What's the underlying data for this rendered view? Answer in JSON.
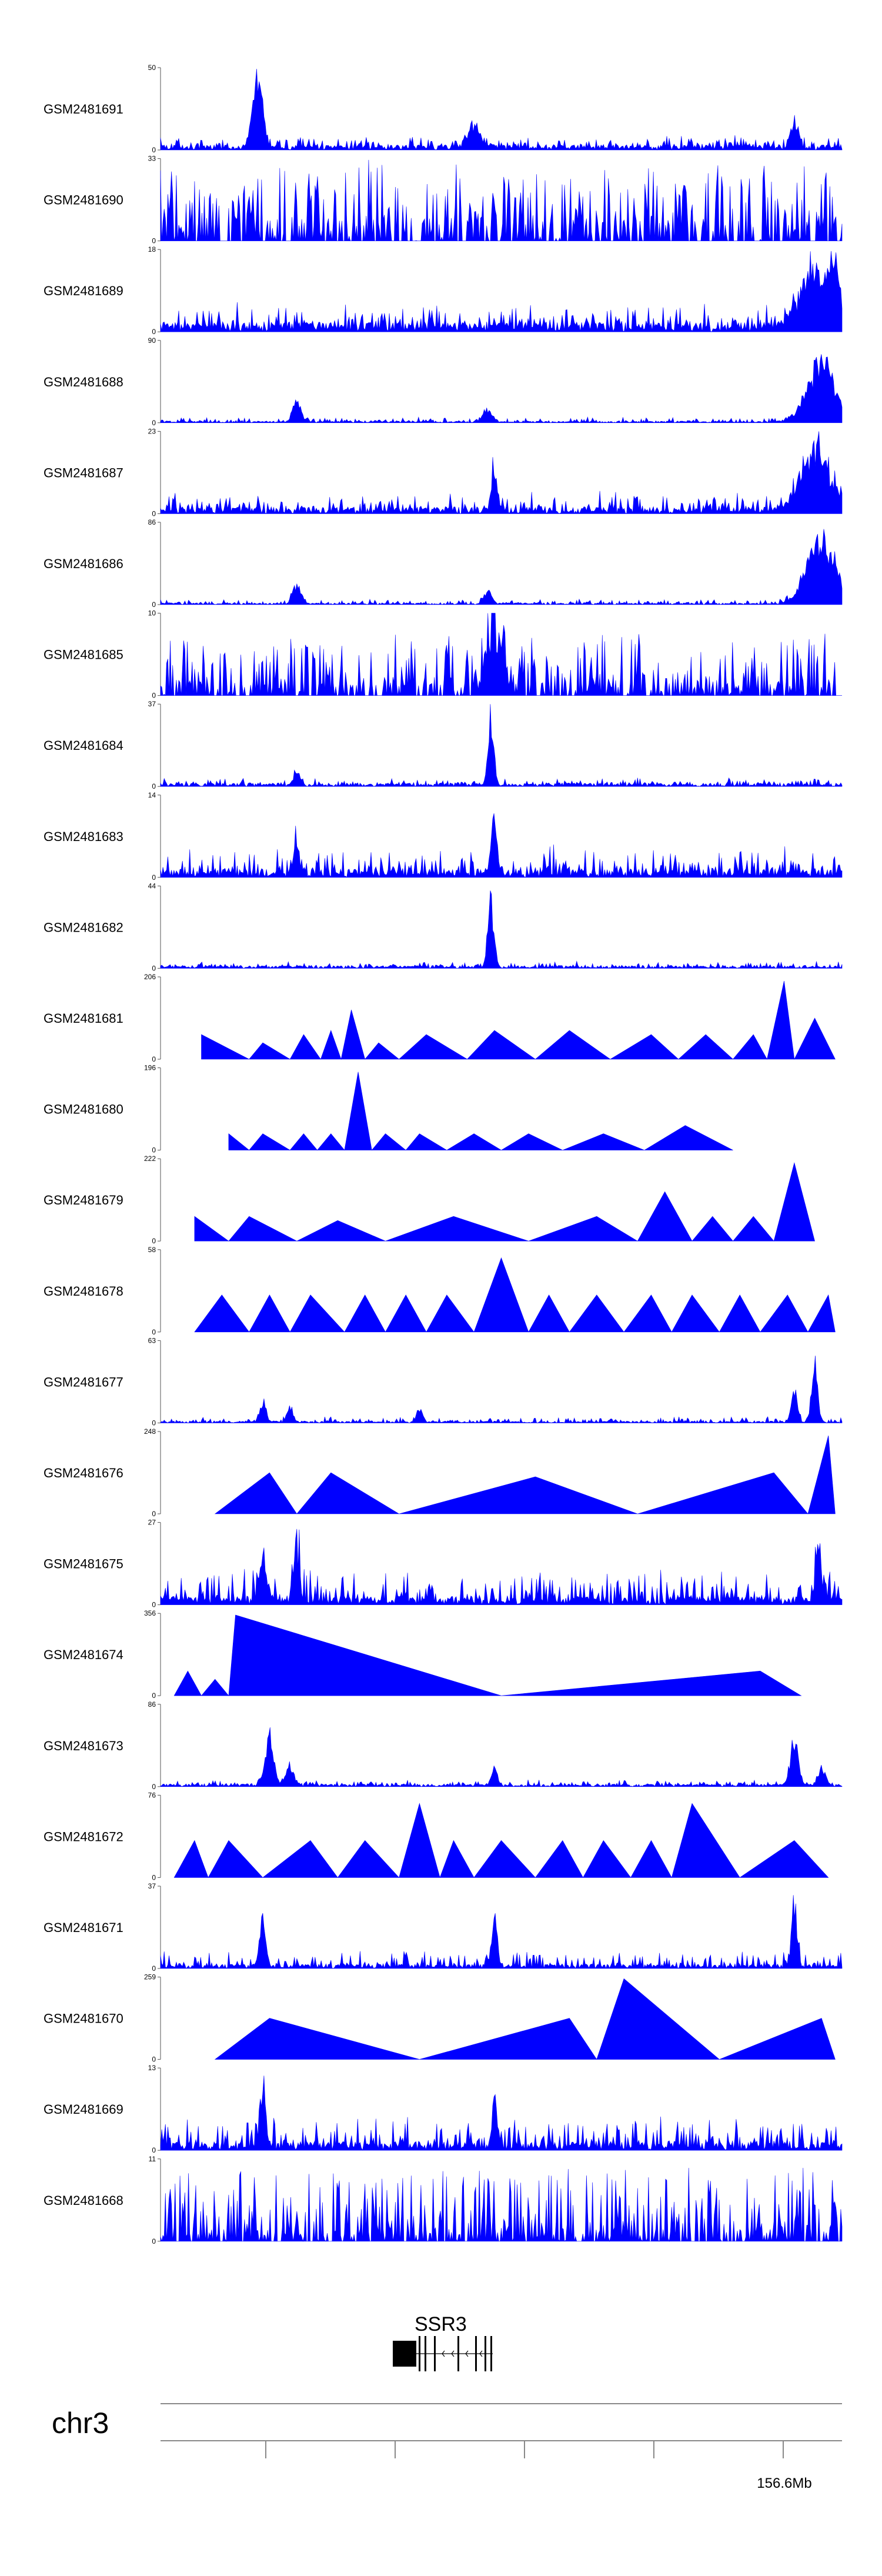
{
  "chart_data": {
    "type": "area",
    "title": "",
    "color": "#0000ff",
    "tracks": [
      {
        "name": "GSM2481691",
        "ymax": 50,
        "style": "noisy",
        "base": 0.06,
        "noise": 0.12,
        "peaks": [
          [
            0.14,
            0.95,
            0.008
          ],
          [
            0.15,
            0.5,
            0.006
          ],
          [
            0.46,
            0.3,
            0.015
          ],
          [
            0.93,
            0.38,
            0.008
          ]
        ]
      },
      {
        "name": "GSM2481690",
        "ymax": 33,
        "style": "spiky",
        "base": 0.25,
        "noise": 0.75,
        "peaks": []
      },
      {
        "name": "GSM2481689",
        "ymax": 18,
        "style": "noisy",
        "base": 0.12,
        "noise": 0.25,
        "peaks": [
          [
            0.96,
            0.85,
            0.03
          ],
          [
            0.99,
            0.75,
            0.01
          ]
        ]
      },
      {
        "name": "GSM2481688",
        "ymax": 90,
        "style": "noisy",
        "base": 0.02,
        "noise": 0.05,
        "peaks": [
          [
            0.2,
            0.32,
            0.008
          ],
          [
            0.48,
            0.2,
            0.008
          ],
          [
            0.97,
            0.85,
            0.03
          ]
        ]
      },
      {
        "name": "GSM2481687",
        "ymax": 23,
        "style": "noisy",
        "base": 0.08,
        "noise": 0.2,
        "peaks": [
          [
            0.49,
            0.55,
            0.006
          ],
          [
            0.96,
            0.85,
            0.03
          ]
        ]
      },
      {
        "name": "GSM2481686",
        "ymax": 86,
        "style": "noisy",
        "base": 0.02,
        "noise": 0.05,
        "peaks": [
          [
            0.2,
            0.3,
            0.008
          ],
          [
            0.48,
            0.17,
            0.008
          ],
          [
            0.97,
            0.95,
            0.03
          ]
        ]
      },
      {
        "name": "GSM2481685",
        "ymax": 10,
        "style": "spiky",
        "base": 0.15,
        "noise": 0.65,
        "peaks": [
          [
            0.49,
            0.95,
            0.015
          ]
        ]
      },
      {
        "name": "GSM2481684",
        "ymax": 37,
        "style": "noisy",
        "base": 0.04,
        "noise": 0.07,
        "peaks": [
          [
            0.2,
            0.2,
            0.006
          ],
          [
            0.485,
            0.98,
            0.006
          ]
        ]
      },
      {
        "name": "GSM2481683",
        "ymax": 14,
        "style": "noisy",
        "base": 0.1,
        "noise": 0.3,
        "peaks": [
          [
            0.49,
            0.88,
            0.006
          ],
          [
            0.2,
            0.45,
            0.006
          ]
        ]
      },
      {
        "name": "GSM2481682",
        "ymax": 44,
        "style": "noisy",
        "base": 0.03,
        "noise": 0.06,
        "peaks": [
          [
            0.485,
            0.98,
            0.006
          ]
        ]
      },
      {
        "name": "GSM2481681",
        "ymax": 206,
        "style": "tri",
        "points": [
          [
            0.06,
            0.3
          ],
          [
            0.13,
            0.0
          ],
          [
            0.15,
            0.2
          ],
          [
            0.19,
            0.0
          ],
          [
            0.21,
            0.3
          ],
          [
            0.235,
            0.0
          ],
          [
            0.25,
            0.35
          ],
          [
            0.265,
            0.0
          ],
          [
            0.28,
            0.6
          ],
          [
            0.3,
            0.0
          ],
          [
            0.32,
            0.2
          ],
          [
            0.35,
            0.0
          ],
          [
            0.39,
            0.3
          ],
          [
            0.45,
            0.0
          ],
          [
            0.49,
            0.35
          ],
          [
            0.55,
            0.0
          ],
          [
            0.6,
            0.35
          ],
          [
            0.66,
            0.0
          ],
          [
            0.72,
            0.3
          ],
          [
            0.76,
            0.0
          ],
          [
            0.8,
            0.3
          ],
          [
            0.84,
            0.0
          ],
          [
            0.87,
            0.3
          ],
          [
            0.89,
            0.0
          ],
          [
            0.915,
            0.95
          ],
          [
            0.93,
            0.0
          ],
          [
            0.96,
            0.5
          ],
          [
            0.99,
            0.0
          ]
        ]
      },
      {
        "name": "GSM2481680",
        "ymax": 196,
        "style": "tri",
        "points": [
          [
            0.1,
            0.2
          ],
          [
            0.13,
            0.0
          ],
          [
            0.15,
            0.2
          ],
          [
            0.19,
            0.0
          ],
          [
            0.21,
            0.2
          ],
          [
            0.23,
            0.0
          ],
          [
            0.25,
            0.2
          ],
          [
            0.27,
            0.0
          ],
          [
            0.29,
            0.95
          ],
          [
            0.31,
            0.0
          ],
          [
            0.33,
            0.2
          ],
          [
            0.36,
            0.0
          ],
          [
            0.38,
            0.2
          ],
          [
            0.42,
            0.0
          ],
          [
            0.46,
            0.2
          ],
          [
            0.5,
            0.0
          ],
          [
            0.54,
            0.2
          ],
          [
            0.59,
            0.0
          ],
          [
            0.65,
            0.2
          ],
          [
            0.71,
            0.0
          ],
          [
            0.77,
            0.3
          ],
          [
            0.84,
            0.0
          ]
        ]
      },
      {
        "name": "GSM2481679",
        "ymax": 222,
        "style": "tri",
        "points": [
          [
            0.05,
            0.3
          ],
          [
            0.1,
            0.0
          ],
          [
            0.13,
            0.3
          ],
          [
            0.2,
            0.0
          ],
          [
            0.26,
            0.25
          ],
          [
            0.33,
            0.0
          ],
          [
            0.43,
            0.3
          ],
          [
            0.54,
            0.0
          ],
          [
            0.64,
            0.3
          ],
          [
            0.7,
            0.0
          ],
          [
            0.74,
            0.6
          ],
          [
            0.78,
            0.0
          ],
          [
            0.81,
            0.3
          ],
          [
            0.84,
            0.0
          ],
          [
            0.87,
            0.3
          ],
          [
            0.9,
            0.0
          ],
          [
            0.93,
            0.95
          ],
          [
            0.96,
            0.0
          ]
        ]
      },
      {
        "name": "GSM2481678",
        "ymax": 58,
        "style": "tri",
        "points": [
          [
            0.05,
            0.0
          ],
          [
            0.09,
            0.45
          ],
          [
            0.13,
            0.0
          ],
          [
            0.16,
            0.45
          ],
          [
            0.19,
            0.0
          ],
          [
            0.22,
            0.45
          ],
          [
            0.27,
            0.0
          ],
          [
            0.3,
            0.45
          ],
          [
            0.33,
            0.0
          ],
          [
            0.36,
            0.45
          ],
          [
            0.39,
            0.0
          ],
          [
            0.42,
            0.45
          ],
          [
            0.46,
            0.0
          ],
          [
            0.5,
            0.9
          ],
          [
            0.54,
            0.0
          ],
          [
            0.57,
            0.45
          ],
          [
            0.6,
            0.0
          ],
          [
            0.64,
            0.45
          ],
          [
            0.68,
            0.0
          ],
          [
            0.72,
            0.45
          ],
          [
            0.75,
            0.0
          ],
          [
            0.78,
            0.45
          ],
          [
            0.82,
            0.0
          ],
          [
            0.85,
            0.45
          ],
          [
            0.88,
            0.0
          ],
          [
            0.92,
            0.45
          ],
          [
            0.95,
            0.0
          ],
          [
            0.98,
            0.45
          ],
          [
            0.99,
            0.0
          ]
        ]
      },
      {
        "name": "GSM2481677",
        "ymax": 63,
        "style": "noisy",
        "base": 0.02,
        "noise": 0.06,
        "peaks": [
          [
            0.15,
            0.3,
            0.006
          ],
          [
            0.19,
            0.25,
            0.006
          ],
          [
            0.38,
            0.2,
            0.006
          ],
          [
            0.93,
            0.45,
            0.006
          ],
          [
            0.96,
            0.95,
            0.006
          ]
        ]
      },
      {
        "name": "GSM2481676",
        "ymax": 248,
        "style": "tri",
        "points": [
          [
            0.08,
            0.0
          ],
          [
            0.16,
            0.5
          ],
          [
            0.2,
            0.0
          ],
          [
            0.25,
            0.5
          ],
          [
            0.35,
            0.0
          ],
          [
            0.55,
            0.45
          ],
          [
            0.7,
            0.0
          ],
          [
            0.9,
            0.5
          ],
          [
            0.95,
            0.0
          ],
          [
            0.98,
            0.95
          ],
          [
            0.99,
            0.0
          ]
        ]
      },
      {
        "name": "GSM2481675",
        "ymax": 27,
        "style": "noisy",
        "base": 0.1,
        "noise": 0.35,
        "peaks": [
          [
            0.15,
            0.65,
            0.006
          ],
          [
            0.2,
            0.7,
            0.006
          ],
          [
            0.965,
            0.9,
            0.006
          ]
        ]
      },
      {
        "name": "GSM2481674",
        "ymax": 356,
        "style": "tri",
        "points": [
          [
            0.02,
            0.0
          ],
          [
            0.04,
            0.3
          ],
          [
            0.06,
            0.0
          ],
          [
            0.08,
            0.2
          ],
          [
            0.1,
            0.0
          ],
          [
            0.11,
            0.98
          ],
          [
            0.5,
            0.0
          ],
          [
            0.88,
            0.3
          ],
          [
            0.94,
            0.0
          ]
        ]
      },
      {
        "name": "GSM2481673",
        "ymax": 86,
        "style": "noisy",
        "base": 0.03,
        "noise": 0.06,
        "peaks": [
          [
            0.16,
            0.9,
            0.008
          ],
          [
            0.19,
            0.3,
            0.008
          ],
          [
            0.49,
            0.25,
            0.006
          ],
          [
            0.93,
            0.75,
            0.008
          ],
          [
            0.97,
            0.25,
            0.008
          ]
        ]
      },
      {
        "name": "GSM2481672",
        "ymax": 76,
        "style": "tri",
        "points": [
          [
            0.02,
            0.0
          ],
          [
            0.05,
            0.45
          ],
          [
            0.07,
            0.0
          ],
          [
            0.1,
            0.45
          ],
          [
            0.15,
            0.0
          ],
          [
            0.22,
            0.45
          ],
          [
            0.26,
            0.0
          ],
          [
            0.3,
            0.45
          ],
          [
            0.35,
            0.0
          ],
          [
            0.38,
            0.9
          ],
          [
            0.41,
            0.0
          ],
          [
            0.43,
            0.45
          ],
          [
            0.46,
            0.0
          ],
          [
            0.5,
            0.45
          ],
          [
            0.55,
            0.0
          ],
          [
            0.59,
            0.45
          ],
          [
            0.62,
            0.0
          ],
          [
            0.65,
            0.45
          ],
          [
            0.69,
            0.0
          ],
          [
            0.72,
            0.45
          ],
          [
            0.75,
            0.0
          ],
          [
            0.78,
            0.9
          ],
          [
            0.85,
            0.0
          ],
          [
            0.93,
            0.45
          ],
          [
            0.98,
            0.0
          ]
        ]
      },
      {
        "name": "GSM2481671",
        "ymax": 37,
        "style": "noisy",
        "base": 0.05,
        "noise": 0.18,
        "peaks": [
          [
            0.15,
            0.7,
            0.006
          ],
          [
            0.49,
            0.7,
            0.006
          ],
          [
            0.93,
            0.95,
            0.006
          ]
        ]
      },
      {
        "name": "GSM2481670",
        "ymax": 259,
        "style": "tri",
        "points": [
          [
            0.08,
            0.0
          ],
          [
            0.16,
            0.5
          ],
          [
            0.38,
            0.0
          ],
          [
            0.6,
            0.5
          ],
          [
            0.64,
            0.0
          ],
          [
            0.68,
            0.98
          ],
          [
            0.82,
            0.0
          ],
          [
            0.97,
            0.5
          ],
          [
            0.99,
            0.0
          ]
        ]
      },
      {
        "name": "GSM2481669",
        "ymax": 13,
        "style": "noisy",
        "base": 0.1,
        "noise": 0.32,
        "peaks": [
          [
            0.15,
            0.95,
            0.006
          ],
          [
            0.49,
            0.6,
            0.006
          ]
        ]
      },
      {
        "name": "GSM2481668",
        "ymax": 11,
        "style": "spiky",
        "base": 0.15,
        "noise": 0.75,
        "peaks": []
      }
    ],
    "gene": {
      "name": "SSR3",
      "strand": "-"
    },
    "chromosome": "chr3",
    "coordinate_label": "156.6Mb"
  }
}
